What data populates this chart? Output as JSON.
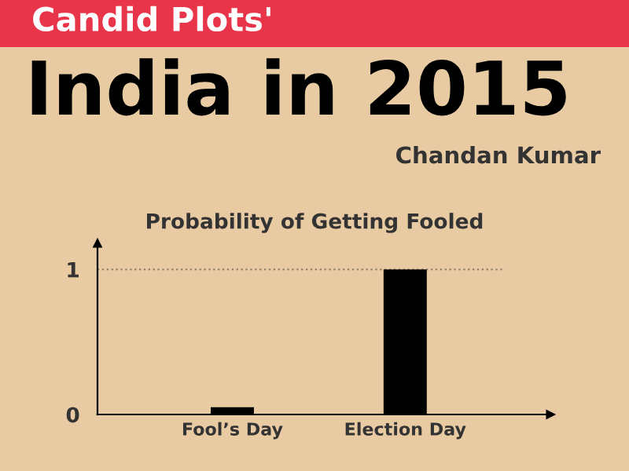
{
  "chart_data": {
    "type": "bar",
    "title": "India in 2015",
    "subtitle": "Probability of Getting Fooled",
    "annotations": [
      "Candid Plots'",
      "Chandan Kumar"
    ],
    "categories": [
      "Fool’s Day",
      "Election Day"
    ],
    "values": [
      0.05,
      1
    ],
    "color": "#000000",
    "ylim": [
      0,
      1.18
    ],
    "yticks": [
      0,
      1
    ],
    "ref_lines": [
      {
        "axis": "y",
        "value": 1,
        "label": null,
        "color": "#8a7a66",
        "line_style": "dotted"
      }
    ],
    "grid": false,
    "legend": false
  }
}
